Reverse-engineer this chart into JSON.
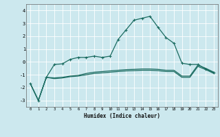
{
  "xlabel": "Humidex (Indice chaleur)",
  "x": [
    0,
    1,
    2,
    3,
    4,
    5,
    6,
    7,
    8,
    9,
    10,
    11,
    12,
    13,
    14,
    15,
    16,
    17,
    18,
    19,
    20,
    21,
    22,
    23
  ],
  "line1": [
    -1.7,
    -3.0,
    -1.2,
    -0.2,
    -0.15,
    0.2,
    0.35,
    0.35,
    0.45,
    0.35,
    0.45,
    1.75,
    2.5,
    3.25,
    3.4,
    3.55,
    2.7,
    1.9,
    1.45,
    -0.1,
    -0.2,
    -0.2,
    -0.55,
    -0.85
  ],
  "line2": [
    -1.7,
    -3.0,
    -1.2,
    -1.25,
    -1.2,
    -1.1,
    -1.05,
    -0.9,
    -0.8,
    -0.75,
    -0.7,
    -0.65,
    -0.6,
    -0.58,
    -0.55,
    -0.55,
    -0.58,
    -0.65,
    -0.65,
    -1.1,
    -1.1,
    -0.25,
    -0.5,
    -0.8
  ],
  "line3": [
    -1.7,
    -3.0,
    -1.2,
    -1.3,
    -1.25,
    -1.15,
    -1.1,
    -1.0,
    -0.9,
    -0.85,
    -0.8,
    -0.75,
    -0.7,
    -0.68,
    -0.65,
    -0.65,
    -0.68,
    -0.75,
    -0.75,
    -1.2,
    -1.2,
    -0.35,
    -0.6,
    -0.9
  ],
  "bg_color": "#cce8ee",
  "line_color": "#1a6b60",
  "grid_color": "#ffffff",
  "ylim": [
    -3.5,
    4.5
  ],
  "yticks": [
    -3,
    -2,
    -1,
    0,
    1,
    2,
    3,
    4
  ],
  "markersize": 3.5,
  "linewidth": 0.9
}
